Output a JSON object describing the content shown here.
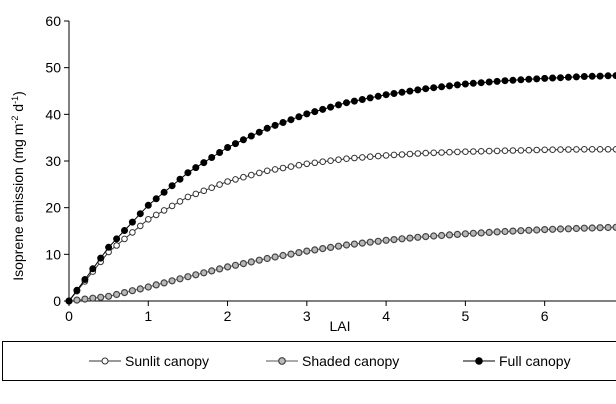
{
  "chart_data": {
    "type": "line",
    "xlabel": "LAI",
    "ylabel": "Isoprene emission (mg m",
    "ylabel_sup1": "-2",
    "ylabel_mid": " d",
    "ylabel_sup2": "-1",
    "ylabel_end": ")",
    "xlim": [
      0,
      6.9
    ],
    "ylim": [
      0,
      60
    ],
    "x_ticks": [
      "0",
      "1",
      "2",
      "3",
      "4",
      "5",
      "6"
    ],
    "y_ticks": [
      "0",
      "10",
      "20",
      "30",
      "40",
      "50",
      "60"
    ],
    "grid": false,
    "legend_position": "bottom",
    "series": [
      {
        "name": "Sunlit canopy",
        "marker": "open-circle",
        "color": "#333333",
        "x": [
          0,
          0.5,
          1,
          1.5,
          2,
          2.5,
          3,
          3.5,
          4,
          4.5,
          5,
          5.5,
          6,
          6.5,
          6.9
        ],
        "values": [
          0,
          10.5,
          17.5,
          22.3,
          25.6,
          27.9,
          29.4,
          30.5,
          31.2,
          31.7,
          32.0,
          32.2,
          32.4,
          32.5,
          32.5
        ]
      },
      {
        "name": "Shaded canopy",
        "marker": "grey-circle",
        "color": "#555555",
        "x": [
          0,
          0.5,
          1,
          1.5,
          2,
          2.5,
          3,
          3.5,
          4,
          4.5,
          5,
          5.5,
          6,
          6.5,
          6.9
        ],
        "values": [
          0,
          1.0,
          3.0,
          5.2,
          7.3,
          9.1,
          10.7,
          12.0,
          13.0,
          13.8,
          14.4,
          14.9,
          15.3,
          15.6,
          15.8
        ]
      },
      {
        "name": "Full canopy",
        "marker": "filled-circle",
        "color": "#000000",
        "x": [
          0,
          0.5,
          1,
          1.5,
          2,
          2.5,
          3,
          3.5,
          4,
          4.5,
          5,
          5.5,
          6,
          6.5,
          6.9
        ],
        "values": [
          0,
          11.5,
          20.5,
          27.5,
          32.9,
          37.0,
          40.1,
          42.5,
          44.2,
          45.5,
          46.5,
          47.2,
          47.7,
          48.1,
          48.3
        ]
      }
    ]
  }
}
